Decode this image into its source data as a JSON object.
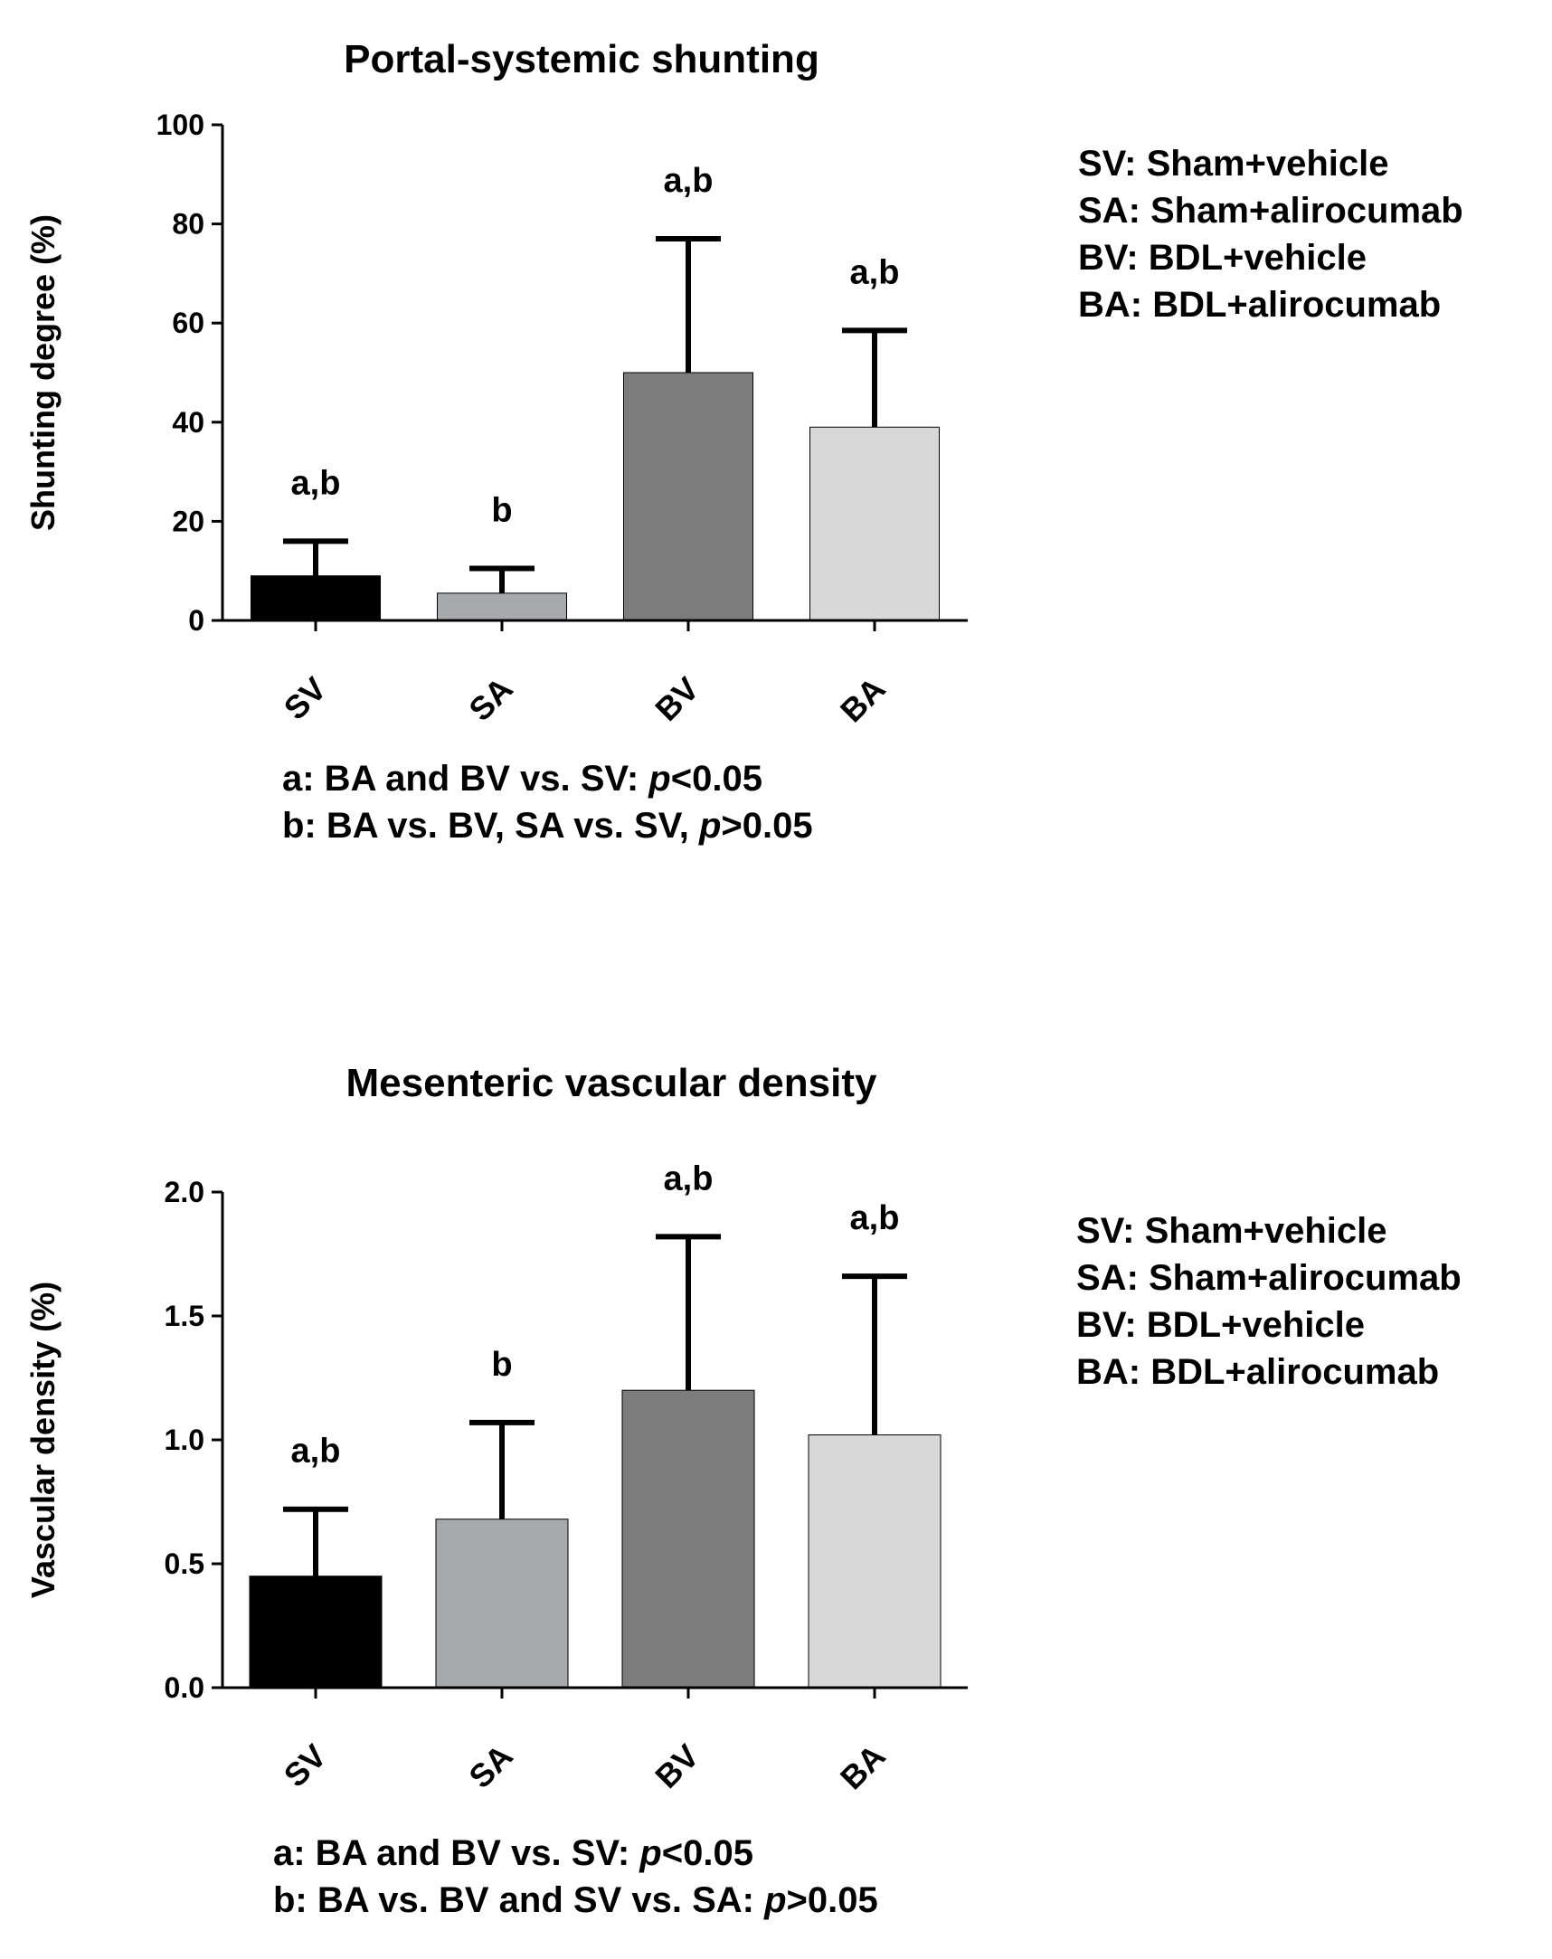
{
  "chart_data": [
    {
      "type": "bar",
      "title": "Portal-systemic shunting",
      "xlabel": "",
      "ylabel": "Shunting degree (%)",
      "ylim": [
        0,
        100
      ],
      "yticks": [
        "0",
        "20",
        "40",
        "60",
        "80",
        "100"
      ],
      "ytick_values": [
        0,
        20,
        40,
        60,
        80,
        100
      ],
      "categories": [
        "SV",
        "SA",
        "BV",
        "BA"
      ],
      "values": [
        9,
        5.5,
        50,
        39
      ],
      "error_upper": [
        16,
        10.5,
        77,
        58.5
      ],
      "colors": [
        "#000000",
        "#a8a9ad",
        "#7c7c7c",
        "#d8d8d8"
      ],
      "significance": [
        "a,b",
        "b",
        "a,b",
        "a,b"
      ],
      "legend": [
        "SV: Sham+vehicle",
        "SA: Sham+alirocumab",
        "BV: BDL+vehicle",
        "BA: BDL+alirocumab"
      ],
      "legend_position": "right",
      "notes": [
        {
          "text": "a: BA and BV vs. SV: ",
          "p": "p",
          "rest": "<0.05"
        },
        {
          "text": "b: BA vs. BV, SA vs. SV, ",
          "p": "p",
          "rest": ">0.05"
        }
      ]
    },
    {
      "type": "bar",
      "title": "Mesenteric vascular density",
      "xlabel": "",
      "ylabel": "Vascular density (%)",
      "ylim": [
        0,
        2.0
      ],
      "yticks": [
        "0.0",
        "0.5",
        "1.0",
        "1.5",
        "2.0"
      ],
      "ytick_values": [
        0,
        0.5,
        1.0,
        1.5,
        2.0
      ],
      "categories": [
        "SV",
        "SA",
        "BV",
        "BA"
      ],
      "values": [
        0.45,
        0.68,
        1.2,
        1.02
      ],
      "error_upper": [
        0.72,
        1.07,
        1.82,
        1.66
      ],
      "colors": [
        "#000000",
        "#a8a9ad",
        "#7c7c7c",
        "#d8d8d8"
      ],
      "significance": [
        "a,b",
        "b",
        "a,b",
        "a,b"
      ],
      "legend": [
        "SV: Sham+vehicle",
        "SA: Sham+alirocumab",
        "BV: BDL+vehicle",
        "BA: BDL+alirocumab"
      ],
      "legend_position": "right",
      "notes": [
        {
          "text": "a: BA and BV vs. SV: ",
          "p": "p",
          "rest": "<0.05"
        },
        {
          "text": "b: BA vs. BV and SV vs. SA: ",
          "p": "p",
          "rest": ">0.05"
        }
      ]
    }
  ]
}
